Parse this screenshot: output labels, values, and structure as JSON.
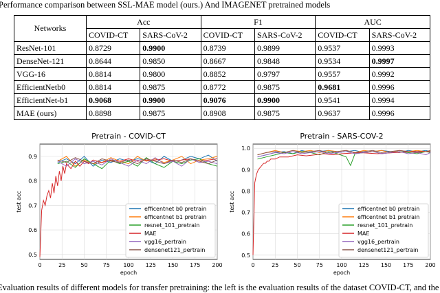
{
  "caption": "Performance comparison between SSL-MAE model (ours.) And IMAGENET pretrained models",
  "table": {
    "networks_header": "Networks",
    "groups": [
      "Acc",
      "F1",
      "AUC"
    ],
    "datasets": [
      "COVID-CT",
      "SARS-CoV-2",
      "COVID-CT",
      "SARS-CoV-2",
      "COVID-CT",
      "SARS-CoV-2"
    ],
    "rows": [
      {
        "name": "ResNet-101",
        "values": [
          "0.8729",
          "0.9900",
          "0.8739",
          "0.9899",
          "0.9537",
          "0.9993"
        ],
        "bold": [
          1
        ]
      },
      {
        "name": "DenseNet-121",
        "values": [
          "0.8644",
          "0.9850",
          "0.8667",
          "0.9848",
          "0.9534",
          "0.9997"
        ],
        "bold": [
          5
        ]
      },
      {
        "name": "VGG-16",
        "values": [
          "0.8814",
          "0.9800",
          "0.8852",
          "0.9797",
          "0.9557",
          "0.9992"
        ],
        "bold": []
      },
      {
        "name": "EfficientNetb0",
        "values": [
          "0.8814",
          "0.9875",
          "0.8772",
          "0.9875",
          "0.9681",
          "0.9996"
        ],
        "bold": [
          4
        ]
      },
      {
        "name": "EfficientNet-b1",
        "values": [
          "0.9068",
          "0.9900",
          "0.9076",
          "0.9900",
          "0.9541",
          "0.9994"
        ],
        "bold": [
          0,
          1,
          2,
          3
        ]
      },
      {
        "name": "MAE (ours)",
        "values": [
          "0.8898",
          "0.9875",
          "0.8908",
          "0.9875",
          "0.9637",
          "0.9996"
        ],
        "bold": []
      }
    ]
  },
  "chart_data": [
    {
      "type": "line",
      "title": "Pretrain - COVID-CT",
      "xlabel": "epoch",
      "ylabel": "test acc",
      "xlim": [
        0,
        200
      ],
      "ylim": [
        0.48,
        0.95
      ],
      "xticks": [
        "0",
        "25",
        "50",
        "75",
        "100",
        "125",
        "150",
        "175",
        "200"
      ],
      "yticks": [
        "0.5",
        "0.6",
        "0.7",
        "0.8",
        "0.9"
      ],
      "ytick_values": [
        0.5,
        0.6,
        0.7,
        0.8,
        0.9
      ],
      "grid": true,
      "legend_position": "bottom-right",
      "series": [
        {
          "name": "efficentnet b0 pretrain",
          "color": "#1f77b4",
          "start": 20,
          "x": [
            20,
            30,
            40,
            50,
            60,
            70,
            80,
            90,
            100,
            110,
            120,
            130,
            140,
            150,
            160,
            170,
            180,
            190,
            200
          ],
          "y": [
            0.875,
            0.89,
            0.87,
            0.9,
            0.86,
            0.885,
            0.875,
            0.89,
            0.88,
            0.89,
            0.885,
            0.87,
            0.9,
            0.88,
            0.885,
            0.9,
            0.89,
            0.905,
            0.88
          ]
        },
        {
          "name": "efficentnet b1 pretrain",
          "color": "#ff7f0e",
          "x": [
            20,
            30,
            40,
            50,
            60,
            70,
            80,
            90,
            100,
            110,
            120,
            130,
            140,
            150,
            160,
            170,
            180,
            190,
            200
          ],
          "y": [
            0.88,
            0.9,
            0.86,
            0.885,
            0.87,
            0.875,
            0.895,
            0.88,
            0.87,
            0.9,
            0.88,
            0.89,
            0.875,
            0.885,
            0.9,
            0.87,
            0.885,
            0.89,
            0.9
          ]
        },
        {
          "name": "resnet_101_pretrain",
          "color": "#2ca02c",
          "x": [
            20,
            30,
            40,
            50,
            60,
            70,
            80,
            90,
            100,
            110,
            120,
            130,
            140,
            150,
            160,
            170,
            180,
            190,
            200
          ],
          "y": [
            0.87,
            0.88,
            0.855,
            0.89,
            0.87,
            0.85,
            0.885,
            0.87,
            0.88,
            0.86,
            0.895,
            0.87,
            0.855,
            0.88,
            0.87,
            0.885,
            0.89,
            0.87,
            0.86
          ]
        },
        {
          "name": "MAE",
          "color": "#d62728",
          "x": [
            0,
            2,
            4,
            6,
            8,
            10,
            12,
            14,
            16,
            18,
            20,
            22,
            24,
            26,
            28,
            30,
            35,
            40,
            45,
            50,
            55,
            60,
            70,
            80,
            90,
            100,
            110,
            120,
            130,
            140,
            150,
            160,
            170,
            180,
            190,
            200
          ],
          "y": [
            0.49,
            0.68,
            0.72,
            0.7,
            0.74,
            0.76,
            0.73,
            0.79,
            0.75,
            0.82,
            0.78,
            0.84,
            0.8,
            0.86,
            0.83,
            0.87,
            0.85,
            0.88,
            0.86,
            0.88,
            0.87,
            0.885,
            0.875,
            0.885,
            0.88,
            0.89,
            0.88,
            0.885,
            0.885,
            0.89,
            0.88,
            0.885,
            0.89,
            0.88,
            0.885,
            0.89
          ]
        },
        {
          "name": "vgg16_pertrain",
          "color": "#9467bd",
          "x": [
            20,
            30,
            40,
            50,
            60,
            70,
            80,
            90,
            100,
            110,
            120,
            130,
            140,
            150,
            160,
            170,
            180,
            190,
            200
          ],
          "y": [
            0.88,
            0.86,
            0.89,
            0.87,
            0.88,
            0.865,
            0.89,
            0.875,
            0.86,
            0.885,
            0.87,
            0.895,
            0.87,
            0.88,
            0.86,
            0.89,
            0.875,
            0.88,
            0.87
          ]
        },
        {
          "name": "densenet121_pertrain",
          "color": "#8c564b",
          "x": [
            20,
            30,
            40,
            50,
            60,
            70,
            80,
            90,
            100,
            110,
            120,
            130,
            140,
            150,
            160,
            170,
            180,
            190,
            200
          ],
          "y": [
            0.885,
            0.875,
            0.895,
            0.88,
            0.87,
            0.89,
            0.88,
            0.875,
            0.885,
            0.87,
            0.89,
            0.88,
            0.87,
            0.885,
            0.875,
            0.89,
            0.88,
            0.87,
            0.885
          ]
        }
      ]
    },
    {
      "type": "line",
      "title": "Pretrain - SARS-COV-2",
      "xlabel": "epoch",
      "ylabel": "test acc",
      "xlim": [
        0,
        200
      ],
      "ylim": [
        0.48,
        1.02
      ],
      "xticks": [
        "0",
        "25",
        "50",
        "75",
        "100",
        "125",
        "150",
        "175",
        "200"
      ],
      "yticks": [
        "0.5",
        "0.6",
        "0.7",
        "0.8",
        "0.9",
        "1.0"
      ],
      "ytick_values": [
        0.5,
        0.6,
        0.7,
        0.8,
        0.9,
        1.0
      ],
      "grid": true,
      "legend_position": "bottom-right",
      "series": [
        {
          "name": "efficentnet b0 pretrain",
          "color": "#1f77b4",
          "x": [
            5,
            15,
            25,
            35,
            45,
            55,
            65,
            75,
            85,
            95,
            105,
            115,
            125,
            135,
            145,
            155,
            165,
            175,
            185,
            195,
            200
          ],
          "y": [
            0.96,
            0.97,
            0.98,
            0.985,
            0.975,
            0.99,
            0.98,
            0.985,
            0.99,
            0.98,
            0.985,
            0.99,
            0.98,
            0.985,
            0.99,
            0.985,
            0.98,
            0.99,
            0.985,
            0.99,
            0.985
          ]
        },
        {
          "name": "efficentnet b1 pretrain",
          "color": "#ff7f0e",
          "x": [
            5,
            15,
            25,
            35,
            45,
            55,
            65,
            75,
            85,
            95,
            105,
            115,
            125,
            135,
            145,
            155,
            165,
            175,
            185,
            195,
            200
          ],
          "y": [
            0.97,
            0.98,
            0.99,
            0.98,
            0.99,
            0.985,
            0.99,
            0.98,
            0.99,
            0.985,
            0.99,
            0.98,
            0.99,
            0.985,
            0.99,
            0.98,
            0.99,
            0.985,
            0.99,
            0.985,
            0.99
          ]
        },
        {
          "name": "resnet_101_pretrain",
          "color": "#2ca02c",
          "x": [
            5,
            15,
            25,
            35,
            45,
            55,
            65,
            75,
            85,
            95,
            105,
            110,
            115,
            125,
            135,
            145,
            155,
            165,
            175,
            185,
            195,
            200
          ],
          "y": [
            0.95,
            0.96,
            0.97,
            0.98,
            0.975,
            0.985,
            0.98,
            0.97,
            0.985,
            0.975,
            0.96,
            0.92,
            0.975,
            0.98,
            0.985,
            0.975,
            0.98,
            0.985,
            0.98,
            0.975,
            0.985,
            0.98
          ]
        },
        {
          "name": "MAE",
          "color": "#d62728",
          "x": [
            0,
            2,
            4,
            6,
            8,
            10,
            12,
            14,
            16,
            18,
            20,
            25,
            30,
            35,
            40,
            50,
            60,
            70,
            80,
            90,
            100,
            120,
            140,
            160,
            180,
            200
          ],
          "y": [
            0.5,
            0.84,
            0.88,
            0.9,
            0.91,
            0.92,
            0.93,
            0.93,
            0.94,
            0.94,
            0.95,
            0.95,
            0.96,
            0.96,
            0.96,
            0.97,
            0.965,
            0.97,
            0.975,
            0.97,
            0.975,
            0.98,
            0.975,
            0.98,
            0.985,
            0.985
          ]
        },
        {
          "name": "vgg16_pertrain",
          "color": "#9467bd",
          "x": [
            5,
            15,
            25,
            35,
            45,
            55,
            65,
            75,
            85,
            95,
            105,
            115,
            125,
            135,
            145,
            155,
            165,
            175,
            185,
            195,
            200
          ],
          "y": [
            0.96,
            0.97,
            0.98,
            0.975,
            0.985,
            0.975,
            0.98,
            0.985,
            0.975,
            0.98,
            0.985,
            0.975,
            0.98,
            0.985,
            0.975,
            0.98,
            0.985,
            0.975,
            0.98,
            0.97,
            0.98
          ]
        },
        {
          "name": "densenet121_pertrain",
          "color": "#8c564b",
          "x": [
            5,
            15,
            25,
            35,
            45,
            55,
            65,
            75,
            85,
            95,
            105,
            115,
            125,
            135,
            145,
            155,
            165,
            175,
            185,
            195,
            200
          ],
          "y": [
            0.97,
            0.98,
            0.985,
            0.98,
            0.99,
            0.98,
            0.985,
            0.99,
            0.98,
            0.985,
            0.99,
            0.98,
            0.985,
            0.99,
            0.98,
            0.985,
            0.99,
            0.985,
            0.98,
            0.985,
            0.99
          ]
        }
      ]
    }
  ],
  "bottom_caption": "Evaluation results of different models for transfer pretraining: the left is the evaluation results of the dataset COVID-CT, and the"
}
